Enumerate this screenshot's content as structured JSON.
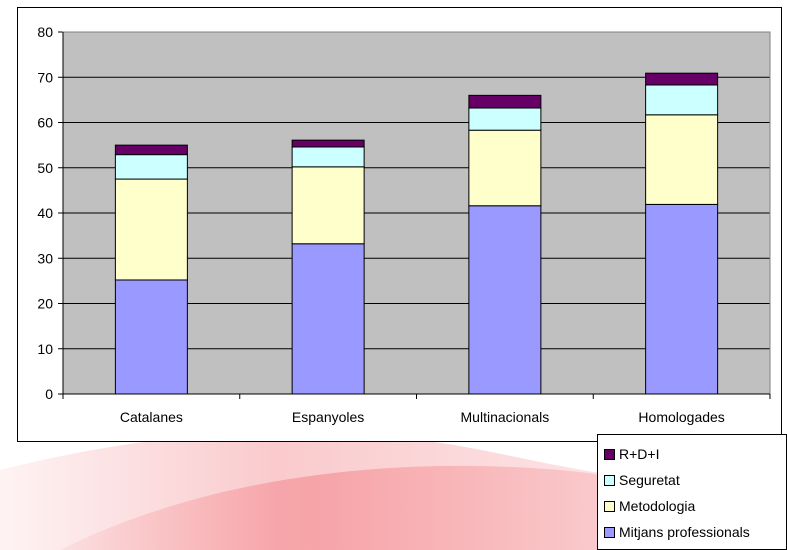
{
  "colors": {
    "plot_bg": "#c0c0c0",
    "mitjans": "#9999ff",
    "metodologia": "#ffffcc",
    "seguretat": "#ccffff",
    "rdi": "#660066",
    "watermark": "#e8101a"
  },
  "chart_data": {
    "type": "bar",
    "stacked": true,
    "categories": [
      "Catalanes",
      "Espanyoles",
      "Multinacionals",
      "Homologades"
    ],
    "series": [
      {
        "name": "Mitjans professionals",
        "color": "#9999ff",
        "values": [
          25.2,
          33.2,
          41.6,
          41.9
        ]
      },
      {
        "name": "Metodologia",
        "color": "#ffffcc",
        "values": [
          22.3,
          17.0,
          16.7,
          19.8
        ]
      },
      {
        "name": "Seguretat",
        "color": "#ccffff",
        "values": [
          5.4,
          4.4,
          4.9,
          6.6
        ]
      },
      {
        "name": "R+D+I",
        "color": "#660066",
        "values": [
          2.1,
          1.5,
          2.8,
          2.6
        ]
      }
    ],
    "ylim": [
      0,
      80
    ],
    "yticks": [
      0,
      10,
      20,
      30,
      40,
      50,
      60,
      70,
      80
    ],
    "title": "",
    "xlabel": "",
    "ylabel": "",
    "grid": true,
    "legend_position": "bottom-right"
  }
}
